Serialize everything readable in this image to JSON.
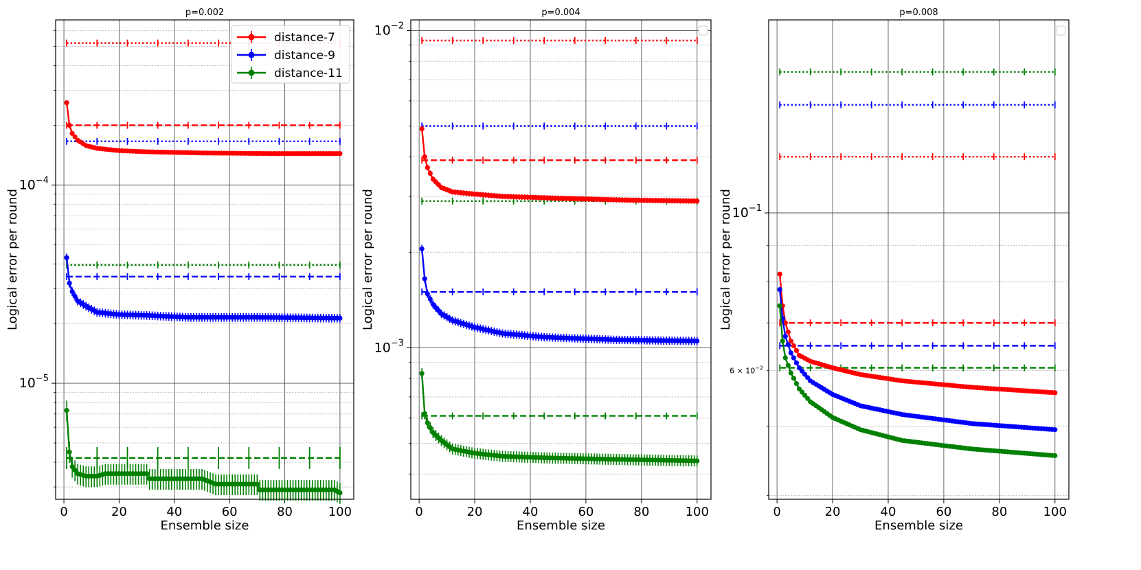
{
  "chart_data": [
    {
      "type": "line",
      "title": "p=0.002",
      "xlabel": "Ensemble size",
      "ylabel": "Logical error per round",
      "yscale": "log",
      "xlim": [
        -3,
        105
      ],
      "ylim": [
        2.6e-06,
        0.00068
      ],
      "xticks": [
        0,
        20,
        40,
        60,
        80,
        100
      ],
      "xtick_labels": [
        "0",
        "20",
        "40",
        "60",
        "80",
        "100"
      ],
      "major_yticks": [
        {
          "value": 0.0001,
          "base": "10",
          "exp": "−4"
        },
        {
          "value": 1e-05,
          "base": "10",
          "exp": "−5"
        }
      ],
      "legend": {
        "placement": "top-right",
        "entries": [
          {
            "label": "distance-7",
            "color": "#ff0000"
          },
          {
            "label": "distance-9",
            "color": "#0000ff"
          },
          {
            "label": "distance-11",
            "color": "#008000"
          }
        ]
      },
      "series": [
        {
          "name": "distance-7",
          "color": "#ff0000",
          "points": [
            [
              1,
              0.00026
            ],
            [
              2,
              0.0002
            ],
            [
              3,
              0.000182
            ],
            [
              5,
              0.000168
            ],
            [
              8,
              0.000158
            ],
            [
              12,
              0.000153
            ],
            [
              20,
              0.000149
            ],
            [
              30,
              0.000147
            ],
            [
              50,
              0.000145
            ],
            [
              75,
              0.000144
            ],
            [
              100,
              0.000144
            ]
          ],
          "err_rel": 0.02
        },
        {
          "name": "distance-9",
          "color": "#0000ff",
          "points": [
            [
              1,
              4.3e-05
            ],
            [
              2,
              3.2e-05
            ],
            [
              3,
              2.9e-05
            ],
            [
              5,
              2.6e-05
            ],
            [
              8,
              2.45e-05
            ],
            [
              12,
              2.28e-05
            ],
            [
              20,
              2.22e-05
            ],
            [
              30,
              2.2e-05
            ],
            [
              45,
              2.15e-05
            ],
            [
              70,
              2.15e-05
            ],
            [
              100,
              2.13e-05
            ]
          ],
          "err_rel": 0.05
        },
        {
          "name": "distance-11",
          "color": "#008000",
          "points": [
            [
              1,
              7.3e-06
            ],
            [
              2,
              4.5e-06
            ],
            [
              3,
              3.8e-06
            ],
            [
              5,
              3.5e-06
            ],
            [
              8,
              3.4e-06
            ],
            [
              12,
              3.4e-06
            ],
            [
              15,
              3.5e-06
            ],
            [
              30,
              3.5e-06
            ],
            [
              31,
              3.3e-06
            ],
            [
              50,
              3.3e-06
            ],
            [
              55,
              3.1e-06
            ],
            [
              70,
              3.1e-06
            ],
            [
              71,
              2.9e-06
            ],
            [
              98,
              2.9e-06
            ],
            [
              100,
              2.8e-06
            ]
          ],
          "err_rel": 0.12
        }
      ],
      "baselines": [
        {
          "color": "#ff0000",
          "style": "dotted",
          "value": 0.00052
        },
        {
          "color": "#ff0000",
          "style": "dashed",
          "value": 0.0002
        },
        {
          "color": "#0000ff",
          "style": "dotted",
          "value": 0.000166
        },
        {
          "color": "#008000",
          "style": "dotted",
          "value": 3.95e-05
        },
        {
          "color": "#0000ff",
          "style": "dashed",
          "value": 3.45e-05
        },
        {
          "color": "#008000",
          "style": "dashed",
          "value": 4.2e-06
        }
      ]
    },
    {
      "type": "line",
      "title": "p=0.004",
      "xlabel": "Ensemble size",
      "ylabel": "Logical error per round",
      "yscale": "log",
      "xlim": [
        -3,
        105
      ],
      "ylim": [
        0.000333,
        0.0108
      ],
      "xticks": [
        0,
        20,
        40,
        60,
        80,
        100
      ],
      "xtick_labels": [
        "0",
        "20",
        "40",
        "60",
        "80",
        "100"
      ],
      "major_yticks": [
        {
          "value": 0.01,
          "base": "10",
          "exp": "−2"
        },
        {
          "value": 0.001,
          "base": "10",
          "exp": "−3"
        }
      ],
      "legend": {
        "placement": "top-right",
        "entries": []
      },
      "series": [
        {
          "name": "distance-7",
          "color": "#ff0000",
          "points": [
            [
              1,
              0.0049
            ],
            [
              2,
              0.004
            ],
            [
              3,
              0.0037
            ],
            [
              5,
              0.0034
            ],
            [
              8,
              0.0032
            ],
            [
              12,
              0.0031
            ],
            [
              20,
              0.00305
            ],
            [
              30,
              0.003
            ],
            [
              50,
              0.00296
            ],
            [
              75,
              0.00292
            ],
            [
              100,
              0.0029
            ]
          ],
          "err_rel": 0.02
        },
        {
          "name": "distance-9",
          "color": "#0000ff",
          "points": [
            [
              1,
              0.00205
            ],
            [
              2,
              0.00165
            ],
            [
              3,
              0.00148
            ],
            [
              5,
              0.00137
            ],
            [
              8,
              0.00128
            ],
            [
              12,
              0.00122
            ],
            [
              20,
              0.00116
            ],
            [
              30,
              0.00111
            ],
            [
              45,
              0.00108
            ],
            [
              70,
              0.00106
            ],
            [
              100,
              0.00105
            ]
          ],
          "err_rel": 0.03
        },
        {
          "name": "distance-11",
          "color": "#008000",
          "points": [
            [
              1,
              0.00083
            ],
            [
              2,
              0.00062
            ],
            [
              3,
              0.00058
            ],
            [
              5,
              0.00054
            ],
            [
              8,
              0.00051
            ],
            [
              12,
              0.00048
            ],
            [
              20,
              0.000465
            ],
            [
              30,
              0.000455
            ],
            [
              45,
              0.00045
            ],
            [
              70,
              0.000445
            ],
            [
              100,
              0.00044
            ]
          ],
          "err_rel": 0.04
        }
      ],
      "baselines": [
        {
          "color": "#ff0000",
          "style": "dotted",
          "value": 0.0093
        },
        {
          "color": "#0000ff",
          "style": "dotted",
          "value": 0.005
        },
        {
          "color": "#ff0000",
          "style": "dashed",
          "value": 0.0039
        },
        {
          "color": "#008000",
          "style": "dotted",
          "value": 0.0029
        },
        {
          "color": "#0000ff",
          "style": "dashed",
          "value": 0.0015
        },
        {
          "color": "#008000",
          "style": "dashed",
          "value": 0.00061
        }
      ]
    },
    {
      "type": "line",
      "title": "p=0.008",
      "xlabel": "Ensemble size",
      "ylabel": "Logical error per round",
      "yscale": "log",
      "xlim": [
        -3,
        105
      ],
      "ylim": [
        0.0395,
        0.187
      ],
      "xticks": [
        0,
        20,
        40,
        60,
        80,
        100
      ],
      "xtick_labels": [
        "0",
        "20",
        "40",
        "60",
        "80",
        "100"
      ],
      "major_yticks": [
        {
          "value": 0.1,
          "base": "10",
          "exp": "−1"
        }
      ],
      "minor_ytick_label": {
        "value": 0.06,
        "mantissa": "6 × 10",
        "exp": "−2"
      },
      "legend": {
        "placement": "top-right",
        "entries": []
      },
      "series": [
        {
          "name": "distance-7",
          "color": "#ff0000",
          "points": [
            [
              1,
              0.082
            ],
            [
              2,
              0.074
            ],
            [
              3,
              0.07
            ],
            [
              5,
              0.066
            ],
            [
              8,
              0.063
            ],
            [
              12,
              0.0618
            ],
            [
              20,
              0.0605
            ],
            [
              30,
              0.0592
            ],
            [
              45,
              0.058
            ],
            [
              70,
              0.0568
            ],
            [
              100,
              0.0558
            ]
          ],
          "err_rel": 0.005
        },
        {
          "name": "distance-9",
          "color": "#0000ff",
          "points": [
            [
              1,
              0.078
            ],
            [
              2,
              0.071
            ],
            [
              3,
              0.067
            ],
            [
              5,
              0.0635
            ],
            [
              8,
              0.0605
            ],
            [
              12,
              0.058
            ],
            [
              20,
              0.0555
            ],
            [
              30,
              0.0535
            ],
            [
              45,
              0.052
            ],
            [
              70,
              0.0505
            ],
            [
              100,
              0.0495
            ]
          ],
          "err_rel": 0.005
        },
        {
          "name": "distance-11",
          "color": "#008000",
          "points": [
            [
              1,
              0.074
            ],
            [
              2,
              0.066
            ],
            [
              3,
              0.0625
            ],
            [
              5,
              0.0595
            ],
            [
              8,
              0.0565
            ],
            [
              12,
              0.0542
            ],
            [
              20,
              0.0515
            ],
            [
              30,
              0.0495
            ],
            [
              45,
              0.0478
            ],
            [
              70,
              0.0465
            ],
            [
              100,
              0.0455
            ]
          ],
          "err_rel": 0.005
        }
      ],
      "baselines": [
        {
          "color": "#008000",
          "style": "dotted",
          "value": 0.158
        },
        {
          "color": "#0000ff",
          "style": "dotted",
          "value": 0.142
        },
        {
          "color": "#ff0000",
          "style": "dotted",
          "value": 0.12
        },
        {
          "color": "#ff0000",
          "style": "dashed",
          "value": 0.07
        },
        {
          "color": "#0000ff",
          "style": "dashed",
          "value": 0.065
        },
        {
          "color": "#008000",
          "style": "dashed",
          "value": 0.0605
        }
      ]
    }
  ]
}
